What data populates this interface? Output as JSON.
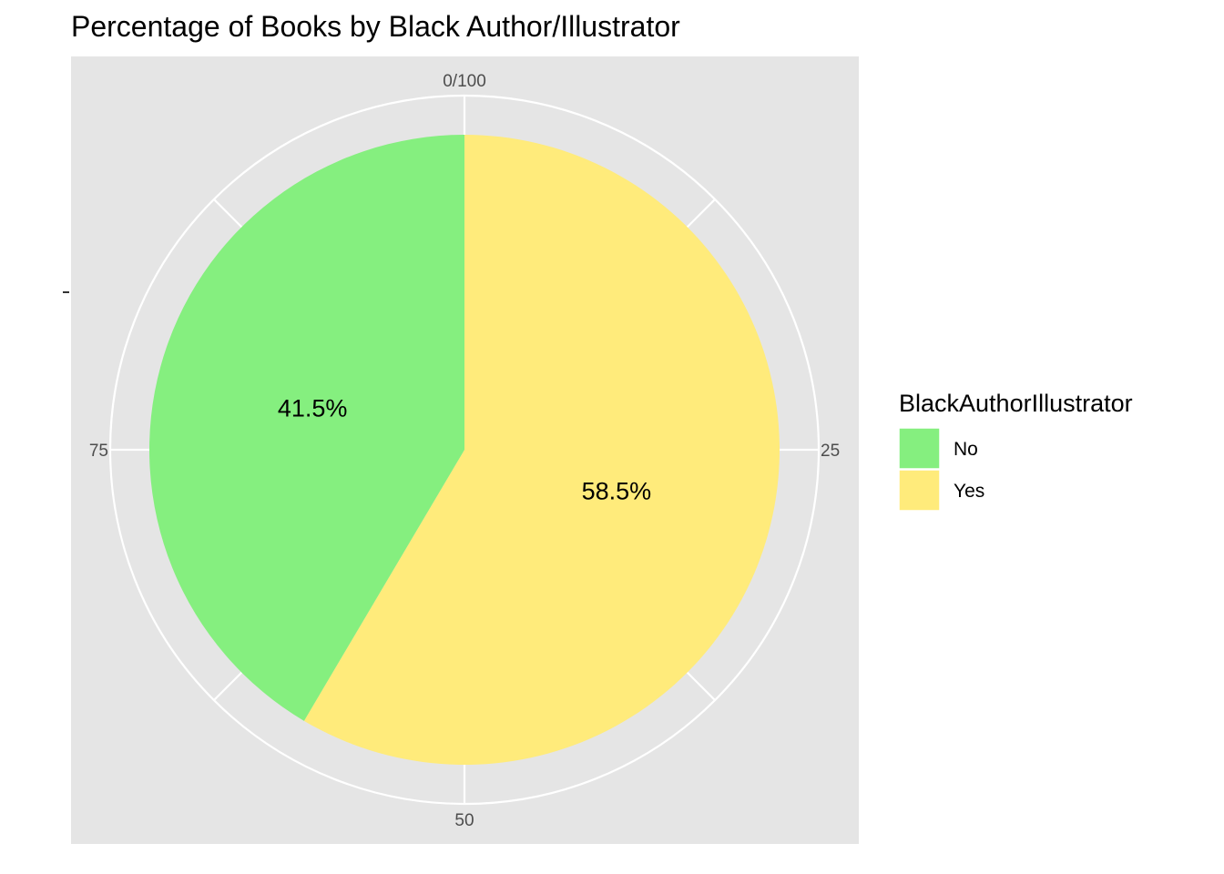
{
  "chart_data": {
    "type": "pie",
    "title": "Percentage of Books by Black Author/Illustrator",
    "theta_axis": {
      "ticks": [
        "0/100",
        "25",
        "50",
        "75"
      ],
      "tick_values": [
        0,
        25,
        50,
        75
      ]
    },
    "slices": [
      {
        "label": "Yes",
        "value": 58.5,
        "value_label": "58.5%",
        "color": "#FFEB7B"
      },
      {
        "label": "No",
        "value": 41.5,
        "value_label": "41.5%",
        "color": "#85EF7F"
      }
    ],
    "legend": {
      "title": "BlackAuthorIllustrator",
      "position": "right",
      "entries": [
        {
          "label": "No",
          "color": "#85EF7F"
        },
        {
          "label": "Yes",
          "color": "#FFEB7B"
        }
      ]
    },
    "panel_background": "#E5E5E5",
    "grid_color": "#FFFFFF",
    "grid": true
  }
}
